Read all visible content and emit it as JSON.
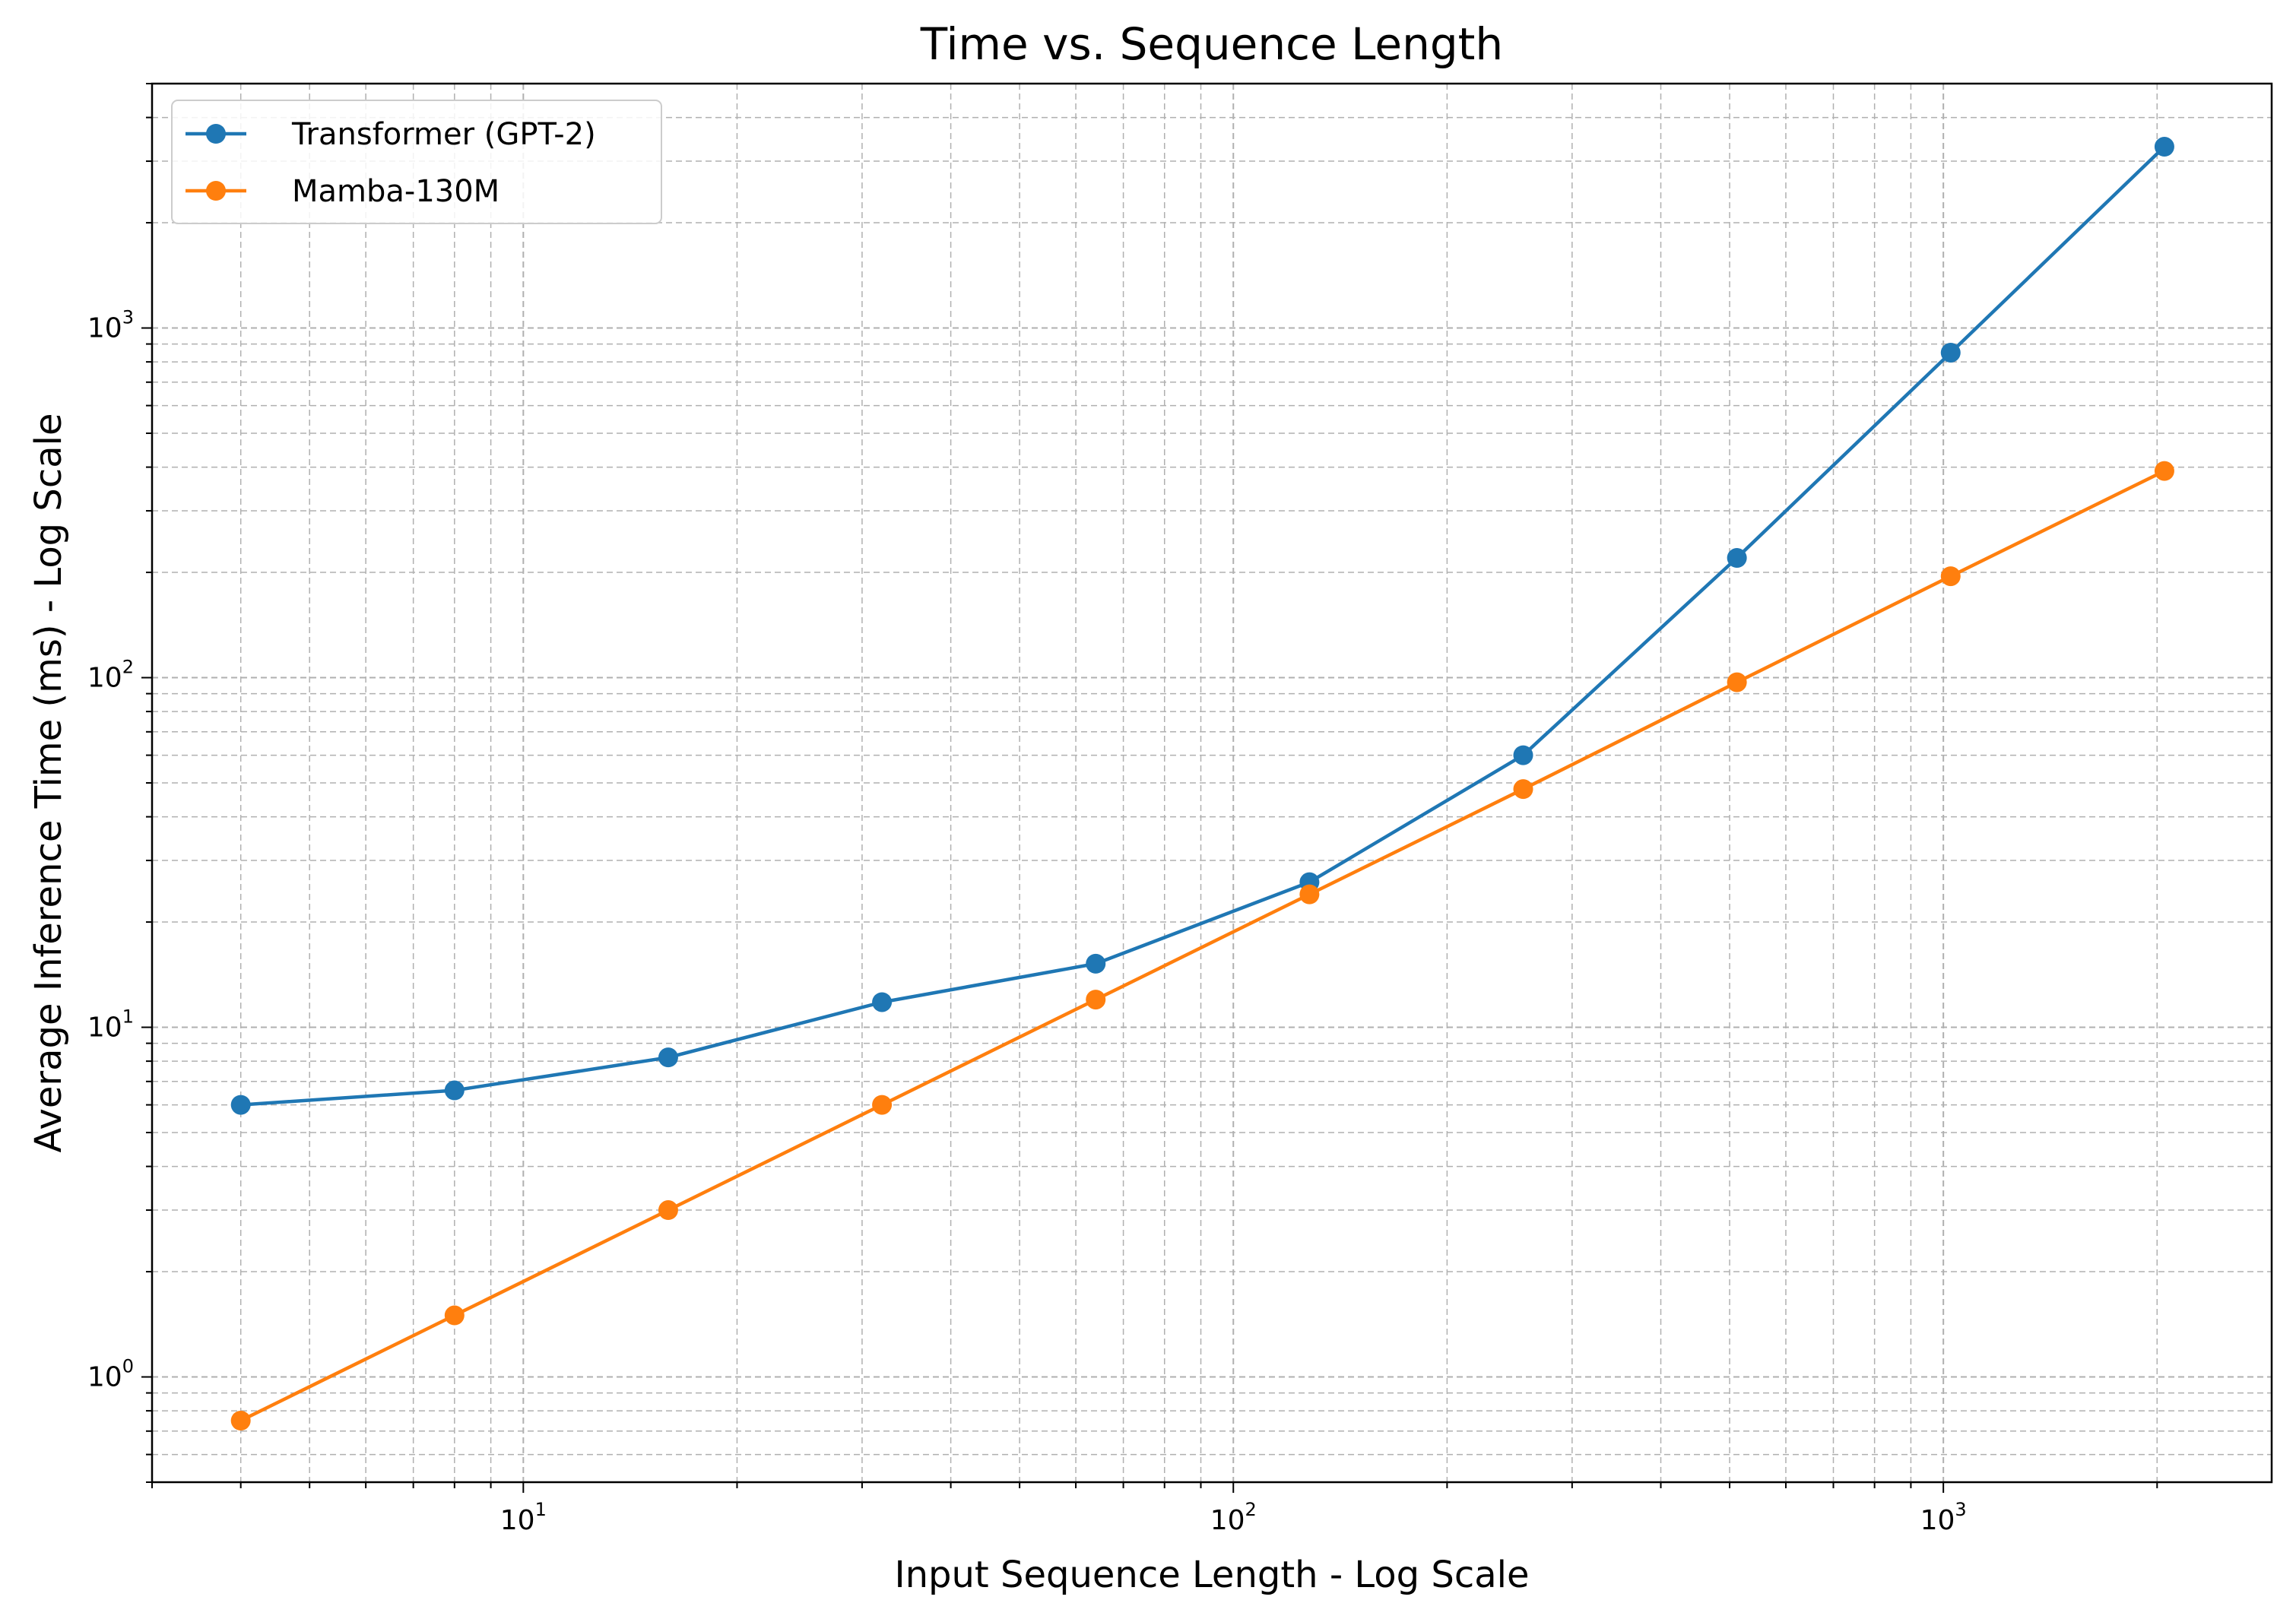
{
  "chart_data": {
    "type": "line",
    "title": "Time vs. Sequence Length",
    "xlabel": "Input Sequence Length - Log Scale",
    "ylabel": "Average Inference Time (ms) - Log Scale",
    "xscale": "log",
    "yscale": "log",
    "xlim": [
      3,
      2900
    ],
    "ylim": [
      0.5,
      5000
    ],
    "x_ticks": [
      {
        "base": "10",
        "exp": "1",
        "value": 10
      },
      {
        "base": "10",
        "exp": "2",
        "value": 100
      },
      {
        "base": "10",
        "exp": "3",
        "value": 1000
      }
    ],
    "y_ticks": [
      {
        "base": "10",
        "exp": "0",
        "value": 1
      },
      {
        "base": "10",
        "exp": "1",
        "value": 10
      },
      {
        "base": "10",
        "exp": "2",
        "value": 100
      },
      {
        "base": "10",
        "exp": "3",
        "value": 1000
      }
    ],
    "grid": true,
    "legend_position": "top-left",
    "x": [
      4,
      8,
      16,
      32,
      64,
      128,
      256,
      512,
      1024,
      2048
    ],
    "series": [
      {
        "name": "Transformer (GPT-2)",
        "color": "#1f77b4",
        "values": [
          6.0,
          6.6,
          8.2,
          11.8,
          15.2,
          26,
          60,
          220,
          850,
          3300
        ]
      },
      {
        "name": "Mamba-130M",
        "color": "#ff7f0e",
        "values": [
          0.75,
          1.5,
          3.0,
          6.0,
          12.0,
          24,
          48,
          97,
          195,
          390
        ]
      }
    ]
  }
}
